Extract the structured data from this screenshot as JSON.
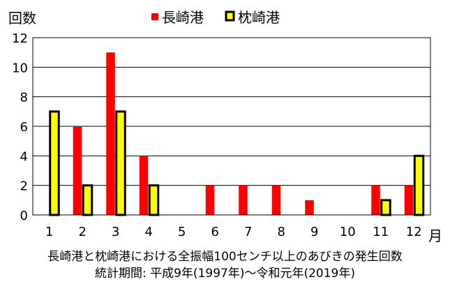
{
  "chart_data": {
    "type": "bar",
    "ylabel": "回数",
    "xlabel": "月",
    "categories": [
      "1",
      "2",
      "3",
      "4",
      "5",
      "6",
      "7",
      "8",
      "9",
      "10",
      "11",
      "12"
    ],
    "series": [
      {
        "name": "長崎港",
        "values": [
          0,
          6,
          11,
          4,
          0,
          2,
          2,
          2,
          1,
          0,
          2,
          2
        ],
        "color": "#ff0000"
      },
      {
        "name": "枕崎港",
        "values": [
          7,
          2,
          7,
          2,
          0,
          0,
          0,
          0,
          0,
          0,
          1,
          4
        ],
        "color": "#ffff00"
      }
    ],
    "ylim": [
      0,
      12
    ],
    "yticks": [
      0,
      2,
      4,
      6,
      8,
      10,
      12
    ],
    "grid": true,
    "legend": "top-center"
  },
  "caption": {
    "line1": "長崎港と枕崎港における全振幅100センチ以上のあびきの発生回数",
    "line2": "統計期間:  平成9年(1997年)～令和元年(2019年)"
  }
}
